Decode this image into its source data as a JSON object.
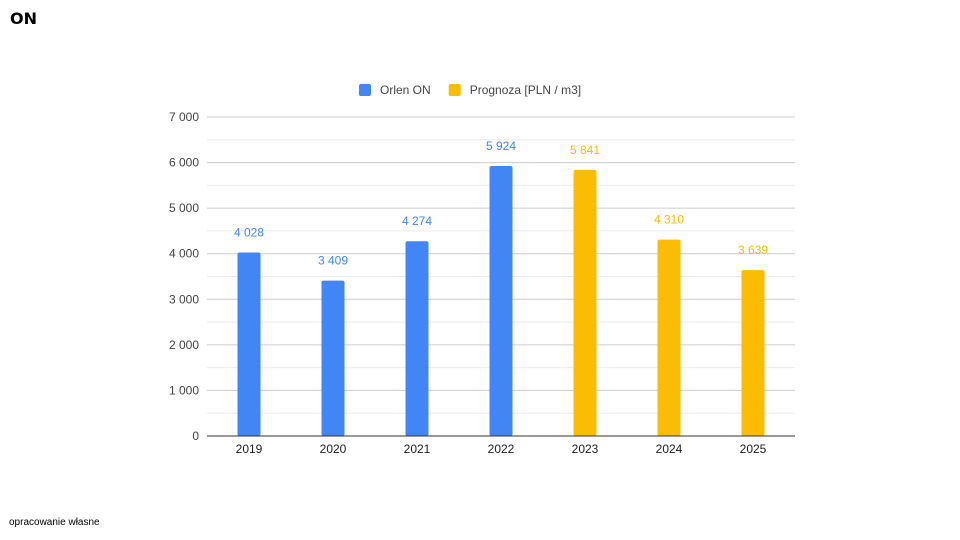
{
  "page": {
    "title": "ON",
    "footnote": "opracowanie własne"
  },
  "chart_data": {
    "type": "bar",
    "categories": [
      "2019",
      "2020",
      "2021",
      "2022",
      "2023",
      "2024",
      "2025"
    ],
    "series": [
      {
        "name": "Orlen ON",
        "color": "#4285f4",
        "values": [
          4028,
          3409,
          4274,
          5924,
          null,
          null,
          null
        ]
      },
      {
        "name": "Prognoza [PLN / m3]",
        "color": "#fbbc04",
        "values": [
          null,
          null,
          null,
          null,
          5841,
          4310,
          3639
        ]
      }
    ],
    "data_labels": [
      "4 028",
      "3 409",
      "4 274",
      "5 924",
      "5 841",
      "4 310",
      "3 639"
    ],
    "y_ticks": [
      "0",
      "1 000",
      "2 000",
      "3 000",
      "4 000",
      "5 000",
      "6 000",
      "7 000"
    ],
    "ylim": [
      0,
      7000
    ],
    "minor_gridlines": true,
    "legend_position": "top",
    "title": "",
    "xlabel": "",
    "ylabel": ""
  }
}
